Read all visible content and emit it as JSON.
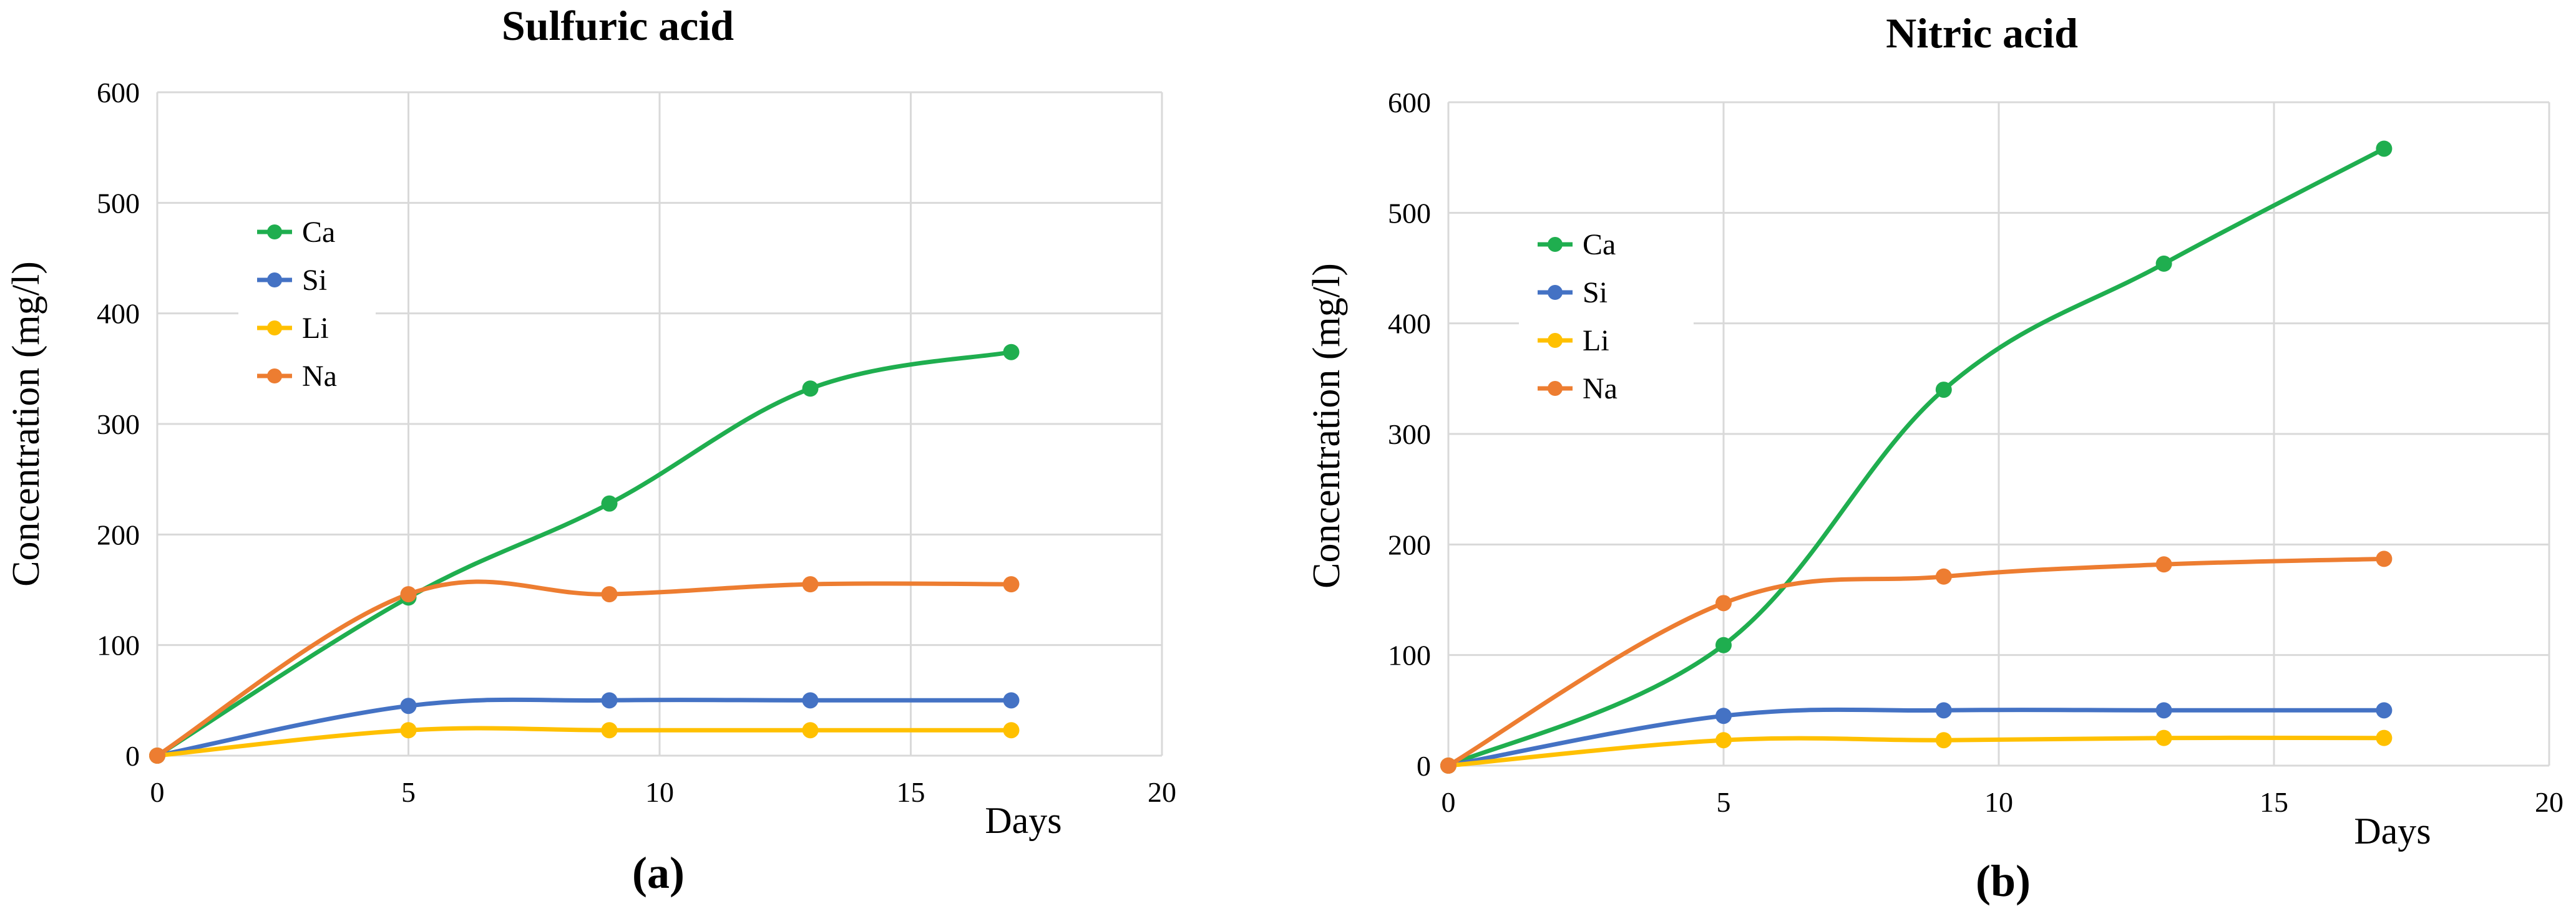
{
  "figure": {
    "colors": {
      "Ca": "#1fae4f",
      "Si": "#4472c4",
      "Li": "#ffc000",
      "Na": "#ed7d31",
      "grid": "#d9d9d9"
    }
  },
  "chart_data": [
    {
      "type": "line",
      "title": "Sulfuric acid",
      "caption": "(a)",
      "xlabel": "Days",
      "ylabel": "Concentration (mg/l)",
      "xlim": [
        0,
        20
      ],
      "ylim": [
        0,
        600
      ],
      "x_ticks": [
        "0",
        "5",
        "10",
        "15",
        "20"
      ],
      "y_ticks": [
        "0",
        "100",
        "200",
        "300",
        "400",
        "500",
        "600"
      ],
      "x": [
        0,
        5,
        9,
        13,
        17
      ],
      "legend": [
        "Ca",
        "Si",
        "Li",
        "Na"
      ],
      "series": [
        {
          "name": "Ca",
          "values": [
            0,
            143,
            228,
            332,
            365
          ]
        },
        {
          "name": "Si",
          "values": [
            0,
            45,
            50,
            50,
            50
          ]
        },
        {
          "name": "Li",
          "values": [
            0,
            23,
            23,
            23,
            23
          ]
        },
        {
          "name": "Na",
          "values": [
            0,
            146,
            146,
            155,
            155
          ]
        }
      ]
    },
    {
      "type": "line",
      "title": "Nitric acid",
      "caption": "(b)",
      "xlabel": "Days",
      "ylabel": "Concentration (mg/l)",
      "xlim": [
        0,
        20
      ],
      "ylim": [
        0,
        600
      ],
      "x_ticks": [
        "0",
        "5",
        "10",
        "15",
        "20"
      ],
      "y_ticks": [
        "0",
        "100",
        "200",
        "300",
        "400",
        "500",
        "600"
      ],
      "x": [
        0,
        5,
        9,
        13,
        17
      ],
      "legend": [
        "Ca",
        "Si",
        "Li",
        "Na"
      ],
      "series": [
        {
          "name": "Ca",
          "values": [
            0,
            109,
            340,
            454,
            558
          ]
        },
        {
          "name": "Si",
          "values": [
            0,
            45,
            50,
            50,
            50
          ]
        },
        {
          "name": "Li",
          "values": [
            0,
            23,
            23,
            25,
            25
          ]
        },
        {
          "name": "Na",
          "values": [
            0,
            147,
            171,
            182,
            187
          ]
        }
      ]
    }
  ]
}
